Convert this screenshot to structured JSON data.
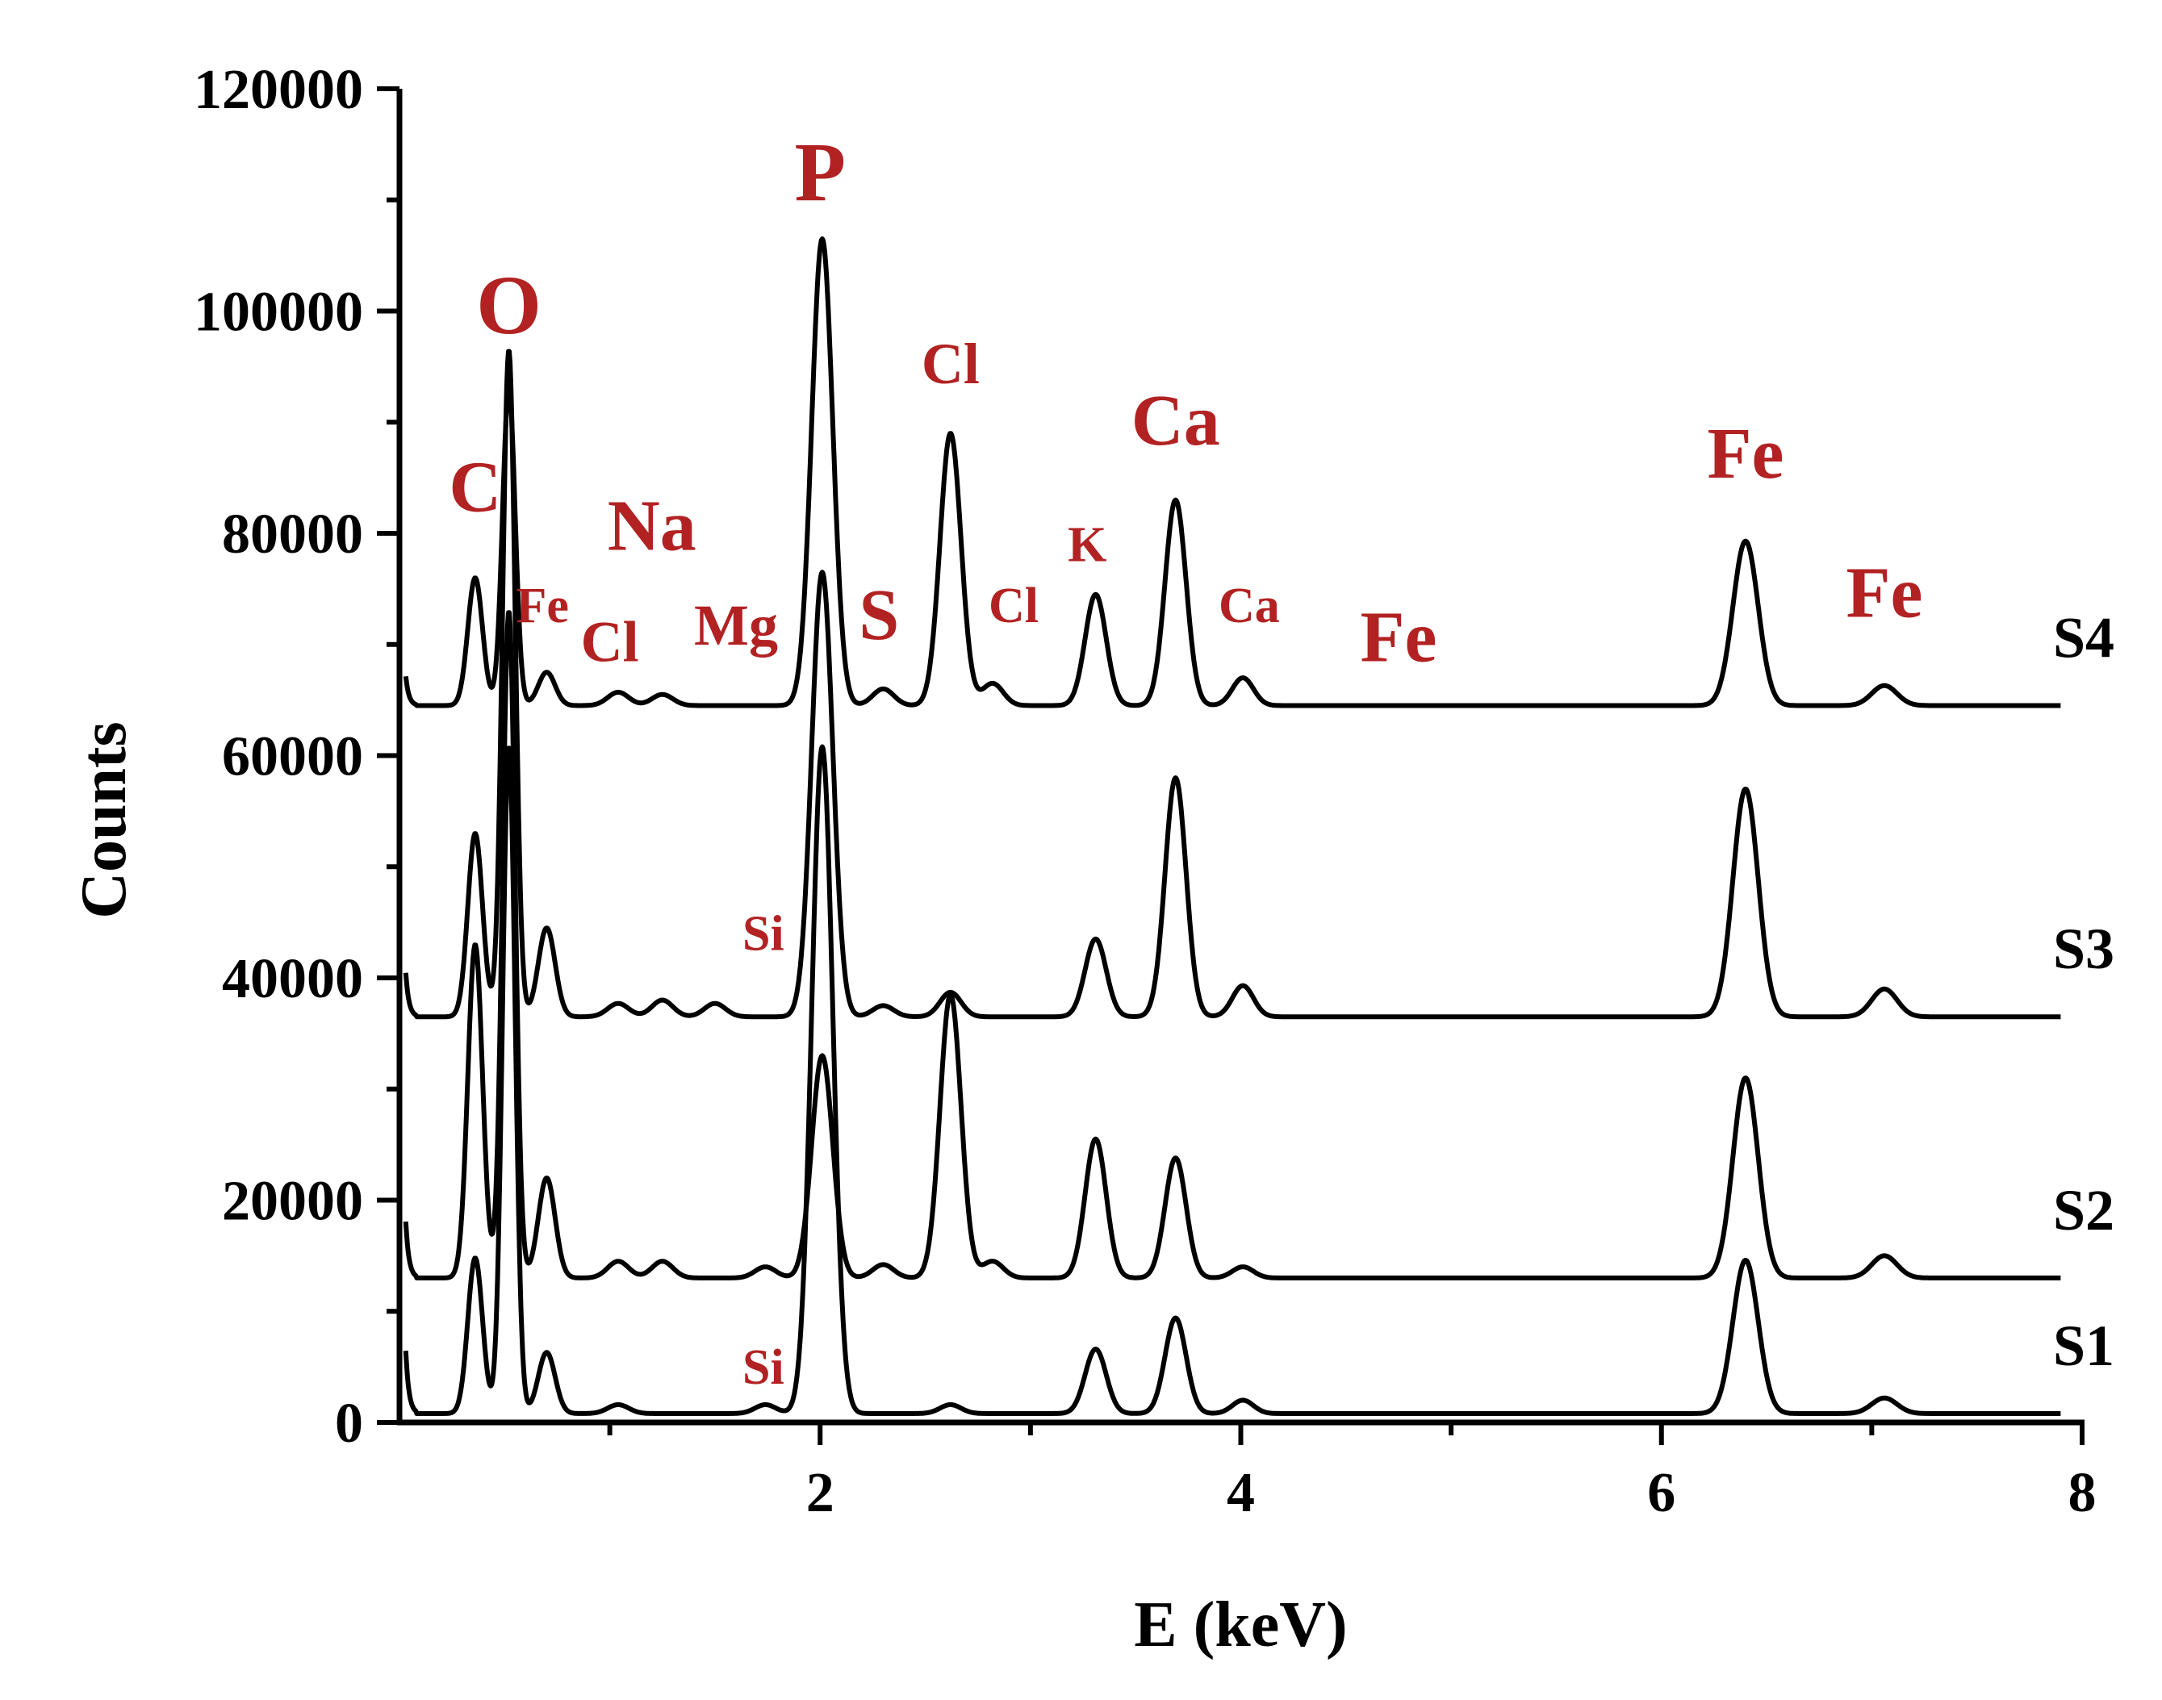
{
  "chart_data": {
    "type": "line",
    "title": "",
    "xlabel": "E (keV)",
    "ylabel": "Counts",
    "xlim": [
      0,
      8
    ],
    "ylim": [
      0,
      120000
    ],
    "x_ticks": [
      "2",
      "4",
      "6",
      "8"
    ],
    "y_ticks": [
      "0",
      "20000",
      "40000",
      "60000",
      "80000",
      "100000",
      "120000"
    ],
    "grid": false,
    "series": [
      {
        "name": "S1",
        "baseline": 800,
        "peaks": [
          [
            0.36,
            14000,
            0.035
          ],
          [
            0.52,
            60000,
            0.03
          ],
          [
            0.7,
            5500,
            0.04
          ],
          [
            1.04,
            800,
            0.05
          ],
          [
            1.74,
            800,
            0.05
          ],
          [
            2.01,
            60000,
            0.05
          ],
          [
            2.62,
            800,
            0.05
          ],
          [
            3.31,
            5800,
            0.05
          ],
          [
            3.69,
            8600,
            0.05
          ],
          [
            4.01,
            1200,
            0.05
          ],
          [
            6.4,
            13800,
            0.06
          ],
          [
            7.06,
            1400,
            0.06
          ]
        ]
      },
      {
        "name": "S2",
        "baseline": 13000,
        "peaks": [
          [
            0.36,
            30000,
            0.035
          ],
          [
            0.52,
            60000,
            0.03
          ],
          [
            0.7,
            9000,
            0.04
          ],
          [
            1.04,
            1500,
            0.05
          ],
          [
            1.25,
            1500,
            0.05
          ],
          [
            1.74,
            1000,
            0.05
          ],
          [
            2.01,
            20000,
            0.05
          ],
          [
            2.3,
            1200,
            0.05
          ],
          [
            2.62,
            25500,
            0.05
          ],
          [
            2.82,
            1500,
            0.05
          ],
          [
            3.31,
            12500,
            0.05
          ],
          [
            3.69,
            10800,
            0.05
          ],
          [
            4.01,
            1000,
            0.05
          ],
          [
            6.4,
            18000,
            0.06
          ],
          [
            7.06,
            2000,
            0.06
          ]
        ]
      },
      {
        "name": "S3",
        "baseline": 36500,
        "peaks": [
          [
            0.36,
            16500,
            0.035
          ],
          [
            0.52,
            60000,
            0.03
          ],
          [
            0.7,
            8000,
            0.04
          ],
          [
            1.04,
            1200,
            0.05
          ],
          [
            1.25,
            1500,
            0.05
          ],
          [
            1.5,
            1200,
            0.05
          ],
          [
            2.01,
            40000,
            0.05
          ],
          [
            2.3,
            1000,
            0.05
          ],
          [
            2.62,
            2200,
            0.05
          ],
          [
            3.31,
            7000,
            0.05
          ],
          [
            3.69,
            21500,
            0.05
          ],
          [
            4.01,
            2800,
            0.05
          ],
          [
            6.4,
            20500,
            0.06
          ],
          [
            7.06,
            2500,
            0.06
          ]
        ]
      },
      {
        "name": "S4",
        "baseline": 64500,
        "peaks": [
          [
            0.36,
            11500,
            0.035
          ],
          [
            0.52,
            28500,
            0.03
          ],
          [
            0.7,
            3000,
            0.04
          ],
          [
            1.04,
            1200,
            0.05
          ],
          [
            1.25,
            1000,
            0.05
          ],
          [
            2.01,
            42000,
            0.05
          ],
          [
            2.3,
            1500,
            0.05
          ],
          [
            2.62,
            24500,
            0.05
          ],
          [
            2.82,
            2000,
            0.05
          ],
          [
            3.31,
            10000,
            0.05
          ],
          [
            3.69,
            18500,
            0.05
          ],
          [
            4.01,
            2500,
            0.05
          ],
          [
            6.4,
            14800,
            0.06
          ],
          [
            7.06,
            1800,
            0.06
          ]
        ]
      }
    ],
    "annotations": [
      {
        "text": "C",
        "x": 0.36,
        "y": 82000,
        "size": "large"
      },
      {
        "text": "O",
        "x": 0.52,
        "y": 98000,
        "size": "xlarge"
      },
      {
        "text": "Fe",
        "x": 0.68,
        "y": 72000,
        "size": "small"
      },
      {
        "text": "Na",
        "x": 1.2,
        "y": 78500,
        "size": "large"
      },
      {
        "text": "Cl",
        "x": 1.0,
        "y": 68500,
        "size": "medium"
      },
      {
        "text": "Mg",
        "x": 1.6,
        "y": 70000,
        "size": "medium"
      },
      {
        "text": "P",
        "x": 2.0,
        "y": 110000,
        "size": "xlarge"
      },
      {
        "text": "S",
        "x": 2.28,
        "y": 70500,
        "size": "large"
      },
      {
        "text": "Cl",
        "x": 2.62,
        "y": 93500,
        "size": "medium"
      },
      {
        "text": "Cl",
        "x": 2.92,
        "y": 72000,
        "size": "small"
      },
      {
        "text": "K",
        "x": 3.27,
        "y": 77500,
        "size": "small"
      },
      {
        "text": "Ca",
        "x": 3.69,
        "y": 88000,
        "size": "large"
      },
      {
        "text": "Ca",
        "x": 4.04,
        "y": 72000,
        "size": "small"
      },
      {
        "text": "Fe",
        "x": 4.75,
        "y": 68500,
        "size": "large"
      },
      {
        "text": "Fe",
        "x": 6.4,
        "y": 85000,
        "size": "large"
      },
      {
        "text": "Fe",
        "x": 7.06,
        "y": 72500,
        "size": "large"
      },
      {
        "text": "Si",
        "x": 1.73,
        "y": 42500,
        "size": "small"
      },
      {
        "text": "Si",
        "x": 1.73,
        "y": 3500,
        "size": "small"
      }
    ],
    "colors": {
      "line": "#000000",
      "annotation": "#b22222",
      "axis": "#000000"
    }
  }
}
